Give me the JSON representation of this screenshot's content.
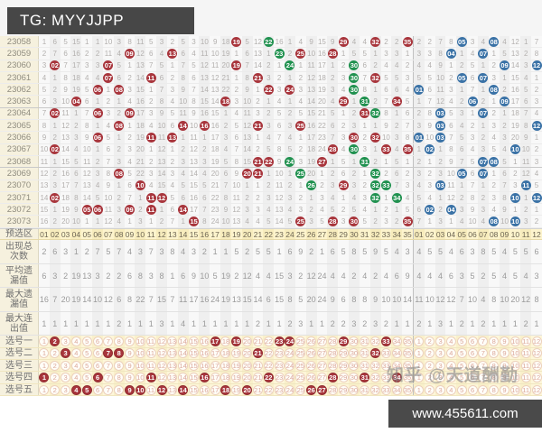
{
  "header": {
    "title": "TG: MYYJJPP"
  },
  "watermark": {
    "text": "知乎 @天道酬勤"
  },
  "footer": {
    "url": "www.455611.com"
  },
  "colors": {
    "red_ball": "#a8353c",
    "green_ball": "#20914f",
    "blue_ball": "#3a72a6",
    "banner_bg": "#474747",
    "yellow_row": "#fbf0c6",
    "label_bg": "#f6f1de"
  },
  "chart_data": {
    "type": "table",
    "front_count": 35,
    "back_count": 12,
    "initial_miss": {
      "front": [
        1,
        6,
        5,
        15,
        1,
        1,
        10,
        3,
        8,
        11,
        5,
        3,
        2,
        5,
        3,
        10,
        9,
        18,
        null,
        5,
        12,
        null,
        16,
        1,
        4,
        9,
        15,
        9,
        null,
        4,
        4,
        null,
        2,
        2,
        null
      ],
      "back": [
        2,
        2,
        7,
        8,
        null,
        3,
        4,
        null,
        4,
        12,
        1,
        7
      ]
    },
    "rows": [
      {
        "issue": "23058",
        "f": [
          [
            19,
            "r"
          ],
          [
            22,
            "g"
          ],
          [
            29,
            "r"
          ],
          [
            32,
            "r"
          ],
          [
            35,
            "r"
          ]
        ],
        "b": [
          5,
          8
        ]
      },
      {
        "issue": "23059",
        "f": [
          [
            9,
            "r"
          ],
          [
            13,
            "r"
          ],
          [
            23,
            "g"
          ],
          [
            25,
            "r"
          ],
          [
            28,
            "r"
          ]
        ],
        "b": [
          4,
          7
        ]
      },
      {
        "issue": "23060",
        "f": [
          [
            2,
            "r"
          ],
          [
            7,
            "r"
          ],
          [
            19,
            "r"
          ],
          [
            24,
            "g"
          ],
          [
            30,
            "g"
          ]
        ],
        "b": [
          9,
          12
        ]
      },
      {
        "issue": "23061",
        "f": [
          [
            7,
            "r"
          ],
          [
            11,
            "r"
          ],
          [
            21,
            "r"
          ],
          [
            30,
            "g"
          ],
          [
            32,
            "r"
          ]
        ],
        "b": [
          5,
          7
        ]
      },
      {
        "issue": "23062",
        "f": [
          [
            6,
            "r"
          ],
          [
            8,
            "r"
          ],
          [
            22,
            "r"
          ],
          [
            24,
            "r"
          ],
          [
            30,
            "g"
          ]
        ],
        "b": [
          1,
          8
        ]
      },
      {
        "issue": "23063",
        "f": [
          [
            4,
            "r"
          ],
          [
            18,
            "r"
          ],
          [
            29,
            "r"
          ],
          [
            31,
            "g"
          ],
          [
            34,
            "r"
          ]
        ],
        "b": [
          6,
          9
        ]
      },
      {
        "issue": "23064",
        "f": [
          [
            2,
            "r"
          ],
          [
            6,
            "r"
          ],
          [
            9,
            "r"
          ],
          [
            31,
            "r"
          ],
          [
            32,
            "g"
          ]
        ],
        "b": [
          3,
          7
        ]
      },
      {
        "issue": "23065",
        "f": [
          [
            8,
            "r"
          ],
          [
            14,
            "r"
          ],
          [
            16,
            "r"
          ],
          [
            21,
            "r"
          ],
          [
            25,
            "r"
          ]
        ],
        "b": [
          3,
          12
        ]
      },
      {
        "issue": "23066",
        "f": [
          [
            6,
            "r"
          ],
          [
            11,
            "r"
          ],
          [
            13,
            "r"
          ],
          [
            30,
            "r"
          ],
          [
            32,
            "r"
          ]
        ],
        "b": [
          1,
          3
        ]
      },
      {
        "issue": "23067",
        "f": [
          [
            2,
            "r"
          ],
          [
            28,
            "r"
          ],
          [
            30,
            "g"
          ],
          [
            33,
            "r"
          ],
          [
            35,
            "r"
          ]
        ],
        "b": [
          2,
          10
        ]
      },
      {
        "issue": "23068",
        "f": [
          [
            21,
            "r"
          ],
          [
            22,
            "r"
          ],
          [
            24,
            "g"
          ],
          [
            27,
            "r"
          ],
          [
            31,
            "g"
          ]
        ],
        "b": [
          7,
          8
        ]
      },
      {
        "issue": "23069",
        "f": [
          [
            8,
            "r"
          ],
          [
            20,
            "r"
          ],
          [
            21,
            "r"
          ],
          [
            25,
            "g"
          ],
          [
            32,
            "g"
          ]
        ],
        "b": [
          5,
          7
        ]
      },
      {
        "issue": "23070",
        "f": [
          [
            10,
            "r"
          ],
          [
            26,
            "g"
          ],
          [
            29,
            "r"
          ],
          [
            32,
            "g"
          ],
          [
            33,
            "g"
          ]
        ],
        "b": [
          3,
          11
        ]
      },
      {
        "issue": "23071",
        "f": [
          [
            2,
            "r"
          ],
          [
            11,
            "r"
          ],
          [
            12,
            "r"
          ],
          [
            32,
            "g"
          ],
          [
            34,
            "g"
          ]
        ],
        "b": [
          10,
          12
        ]
      },
      {
        "issue": "23072",
        "f": [
          [
            5,
            "r"
          ],
          [
            6,
            "r"
          ],
          [
            9,
            "r"
          ],
          [
            11,
            "r"
          ],
          [
            14,
            "r"
          ]
        ],
        "b": [
          2,
          4
        ]
      },
      {
        "issue": "23073",
        "f": [
          [
            15,
            "r"
          ],
          [
            25,
            "r"
          ],
          [
            28,
            "r"
          ],
          [
            30,
            "r"
          ],
          [
            35,
            "r"
          ]
        ],
        "b": [
          8,
          10
        ]
      }
    ],
    "stats": {
      "pre_label": "预选区",
      "pre_front": [
        "01",
        "02",
        "03",
        "04",
        "05",
        "06",
        "07",
        "08",
        "09",
        "10",
        "11",
        "12",
        "13",
        "14",
        "15",
        "16",
        "17",
        "18",
        "19",
        "20",
        "21",
        "22",
        "23",
        "24",
        "25",
        "26",
        "27",
        "28",
        "29",
        "30",
        "31",
        "32",
        "33",
        "34",
        "35"
      ],
      "pre_back": [
        "01",
        "02",
        "03",
        "04",
        "05",
        "06",
        "07",
        "08",
        "09",
        "10",
        "11",
        "12"
      ],
      "rows": [
        {
          "label": "出现总次数",
          "front": [
            2,
            6,
            3,
            1,
            2,
            7,
            5,
            7,
            4,
            3,
            7,
            3,
            8,
            4,
            3,
            2,
            1,
            1,
            5,
            2,
            5,
            5,
            1,
            6,
            9,
            2,
            1,
            6,
            5,
            8,
            5,
            9,
            5,
            4,
            3
          ],
          "back": [
            4,
            5,
            5,
            4,
            6,
            3,
            8,
            5,
            4,
            5,
            5,
            6
          ]
        },
        {
          "label": "平均遗漏值",
          "front": [
            6,
            3,
            2,
            19,
            13,
            3,
            2,
            2,
            6,
            8,
            3,
            8,
            1,
            6,
            9,
            10,
            5,
            19,
            2,
            12,
            4,
            4,
            15,
            3,
            2,
            12,
            24,
            4,
            4,
            2,
            4,
            2,
            4,
            6,
            9
          ],
          "back": [
            4,
            4,
            4,
            6,
            3,
            5,
            2,
            5,
            4,
            5,
            4,
            3
          ]
        },
        {
          "label": "最大遗漏值",
          "front": [
            16,
            7,
            20,
            19,
            14,
            10,
            12,
            6,
            8,
            22,
            7,
            15,
            7,
            11,
            17,
            16,
            24,
            19,
            13,
            15,
            14,
            6,
            15,
            8,
            5,
            20,
            24,
            9,
            6,
            8,
            8,
            9,
            10,
            10,
            14
          ],
          "back": [
            11,
            10,
            12,
            12,
            7,
            10,
            4,
            8,
            10,
            20,
            12,
            8
          ]
        },
        {
          "label": "最大连出值",
          "front": [
            1,
            1,
            1,
            1,
            1,
            1,
            1,
            2,
            1,
            1,
            1,
            3,
            1,
            4,
            1,
            1,
            1,
            1,
            1,
            1,
            2,
            1,
            1,
            2,
            3,
            1,
            1,
            2,
            2,
            3,
            2,
            3,
            2,
            1,
            1
          ],
          "back": [
            2,
            1,
            3,
            1,
            2,
            1,
            2,
            1,
            1,
            1,
            2,
            1
          ]
        }
      ]
    },
    "picks": [
      {
        "label": "选号一",
        "selected": [
          2,
          17,
          19,
          23,
          24,
          29,
          33
        ]
      },
      {
        "label": "选号二",
        "selected": [
          3,
          7,
          8,
          21,
          32
        ]
      },
      {
        "label": "选号三",
        "selected": []
      },
      {
        "label": "选号四",
        "selected": [
          1,
          6,
          11,
          16,
          22,
          28,
          31,
          34
        ]
      },
      {
        "label": "选号五",
        "selected": [
          4,
          5,
          9,
          10,
          12,
          14,
          18,
          20,
          26,
          27
        ]
      }
    ]
  }
}
